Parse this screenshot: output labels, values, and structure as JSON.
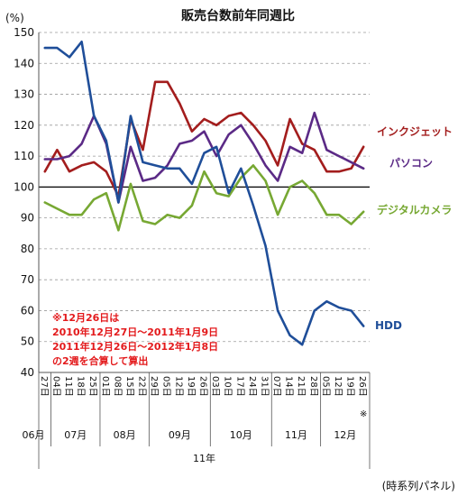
{
  "chart_data": {
    "type": "line",
    "title": "販売台数前年同週比",
    "ylabel": "(%)",
    "ylim": [
      40,
      150
    ],
    "yticks": [
      40,
      50,
      60,
      70,
      80,
      90,
      100,
      110,
      120,
      130,
      140,
      150
    ],
    "reference_line": 100,
    "grid": true,
    "date_labels": [
      "27日",
      "04日",
      "11日",
      "18日",
      "25日",
      "01日",
      "08日",
      "15日",
      "22日",
      "29日",
      "05日",
      "12日",
      "19日",
      "26日",
      "03日",
      "10日",
      "17日",
      "24日",
      "31日",
      "07日",
      "14日",
      "21日",
      "28日",
      "05日",
      "12日",
      "19日",
      "26日"
    ],
    "last_label_note": "※",
    "month_labels": [
      "06月",
      "07月",
      "08月",
      "09月",
      "10月",
      "11月",
      "12月"
    ],
    "year_label": "11年",
    "series": [
      {
        "name": "インクジェット",
        "color": "#a31d1d",
        "values": [
          105,
          112,
          105,
          107,
          108,
          105,
          97,
          122,
          112,
          134,
          134,
          127,
          118,
          122,
          120,
          123,
          124,
          120,
          115,
          107,
          122,
          114,
          112,
          105,
          105,
          106,
          113
        ]
      },
      {
        "name": "パソコン",
        "color": "#5b2a86",
        "values": [
          109,
          109,
          110,
          114,
          123,
          114,
          95,
          113,
          102,
          103,
          107,
          114,
          115,
          118,
          110,
          117,
          120,
          114,
          107,
          102,
          113,
          111,
          124,
          112,
          110,
          108,
          106
        ]
      },
      {
        "name": "デジタルカメラ",
        "color": "#77a833",
        "values": [
          95,
          93,
          91,
          91,
          96,
          98,
          86,
          101,
          89,
          88,
          91,
          90,
          94,
          105,
          98,
          97,
          103,
          107,
          102,
          91,
          100,
          102,
          98,
          91,
          91,
          88,
          92
        ]
      },
      {
        "name": "HDD",
        "color": "#1f4e99",
        "values": [
          145,
          145,
          142,
          147,
          123,
          115,
          95,
          123,
          108,
          107,
          106,
          106,
          101,
          111,
          113,
          98,
          106,
          94,
          81,
          60,
          52,
          49,
          60,
          63,
          61,
          60,
          55
        ]
      }
    ],
    "annotation": [
      "※12月26日は",
      "2010年12月27日～2011年1月9日",
      "2011年12月26日～2012年1月8日",
      "の2週を合算して算出"
    ],
    "source": "(時系列パネル)"
  }
}
